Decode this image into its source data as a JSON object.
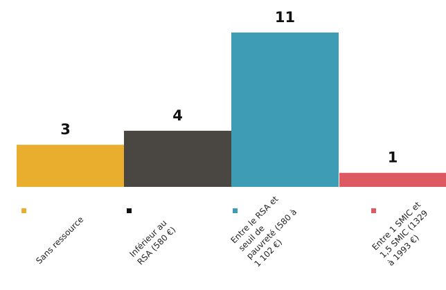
{
  "chart_data": {
    "type": "bar",
    "categories": [
      [
        "Sans ressource"
      ],
      [
        "Inférieur au",
        "RSA (580 €)"
      ],
      [
        "Entre le RSA et",
        "seuil de",
        "pauvreté (580 à",
        "1 102 €)"
      ],
      [
        "Entre 1 SMIC et",
        "1,5 SMIC (1329",
        "à 1993 €)"
      ]
    ],
    "values": [
      3,
      4,
      11,
      1
    ],
    "value_labels": [
      "3",
      "4",
      "11",
      "1"
    ],
    "colors": [
      "#EAAE2E",
      "#4A4641",
      "#3E9DB5",
      "#DE5A62"
    ],
    "title": "",
    "xlabel": "",
    "ylabel": "",
    "ylim": [
      0,
      11
    ],
    "grid": false,
    "legend": "bottom"
  }
}
